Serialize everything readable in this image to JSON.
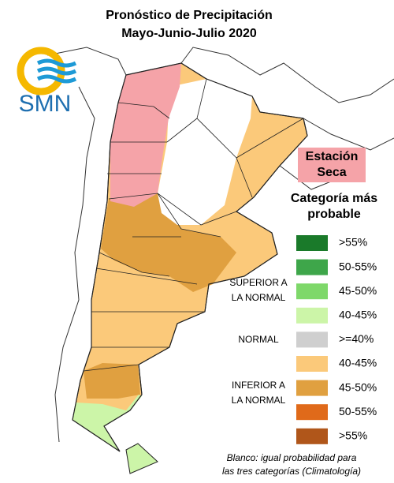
{
  "title": "Pronóstico de Precipitación",
  "subtitle": "Mayo-Junio-Julio 2020",
  "logo_text": "SMN",
  "dry_season": [
    "Estación",
    "Seca"
  ],
  "legend": {
    "title": [
      "Categoría más",
      "probable"
    ],
    "items": [
      {
        "label": ">55%",
        "color": "#1a7a2a"
      },
      {
        "label": "50-55%",
        "color": "#3ea64a"
      },
      {
        "label": "45-50%",
        "color": "#7ed86a"
      },
      {
        "label": "40-45%",
        "color": "#ccf5a8"
      },
      {
        "label": ">=40%",
        "color": "#cfcfcf"
      },
      {
        "label": "40-45%",
        "color": "#fbc97a"
      },
      {
        "label": "45-50%",
        "color": "#e0a040"
      },
      {
        "label": "50-55%",
        "color": "#e06a1a"
      },
      {
        "label": ">55%",
        "color": "#b0561a"
      }
    ],
    "groups": [
      [
        "SUPERIOR A",
        "LA NORMAL"
      ],
      [
        "NORMAL"
      ],
      [
        "INFERIOR A",
        "LA NORMAL"
      ]
    ]
  },
  "note": [
    "Blanco: igual probabilidad para",
    "las tres categorías (Climatología)"
  ]
}
